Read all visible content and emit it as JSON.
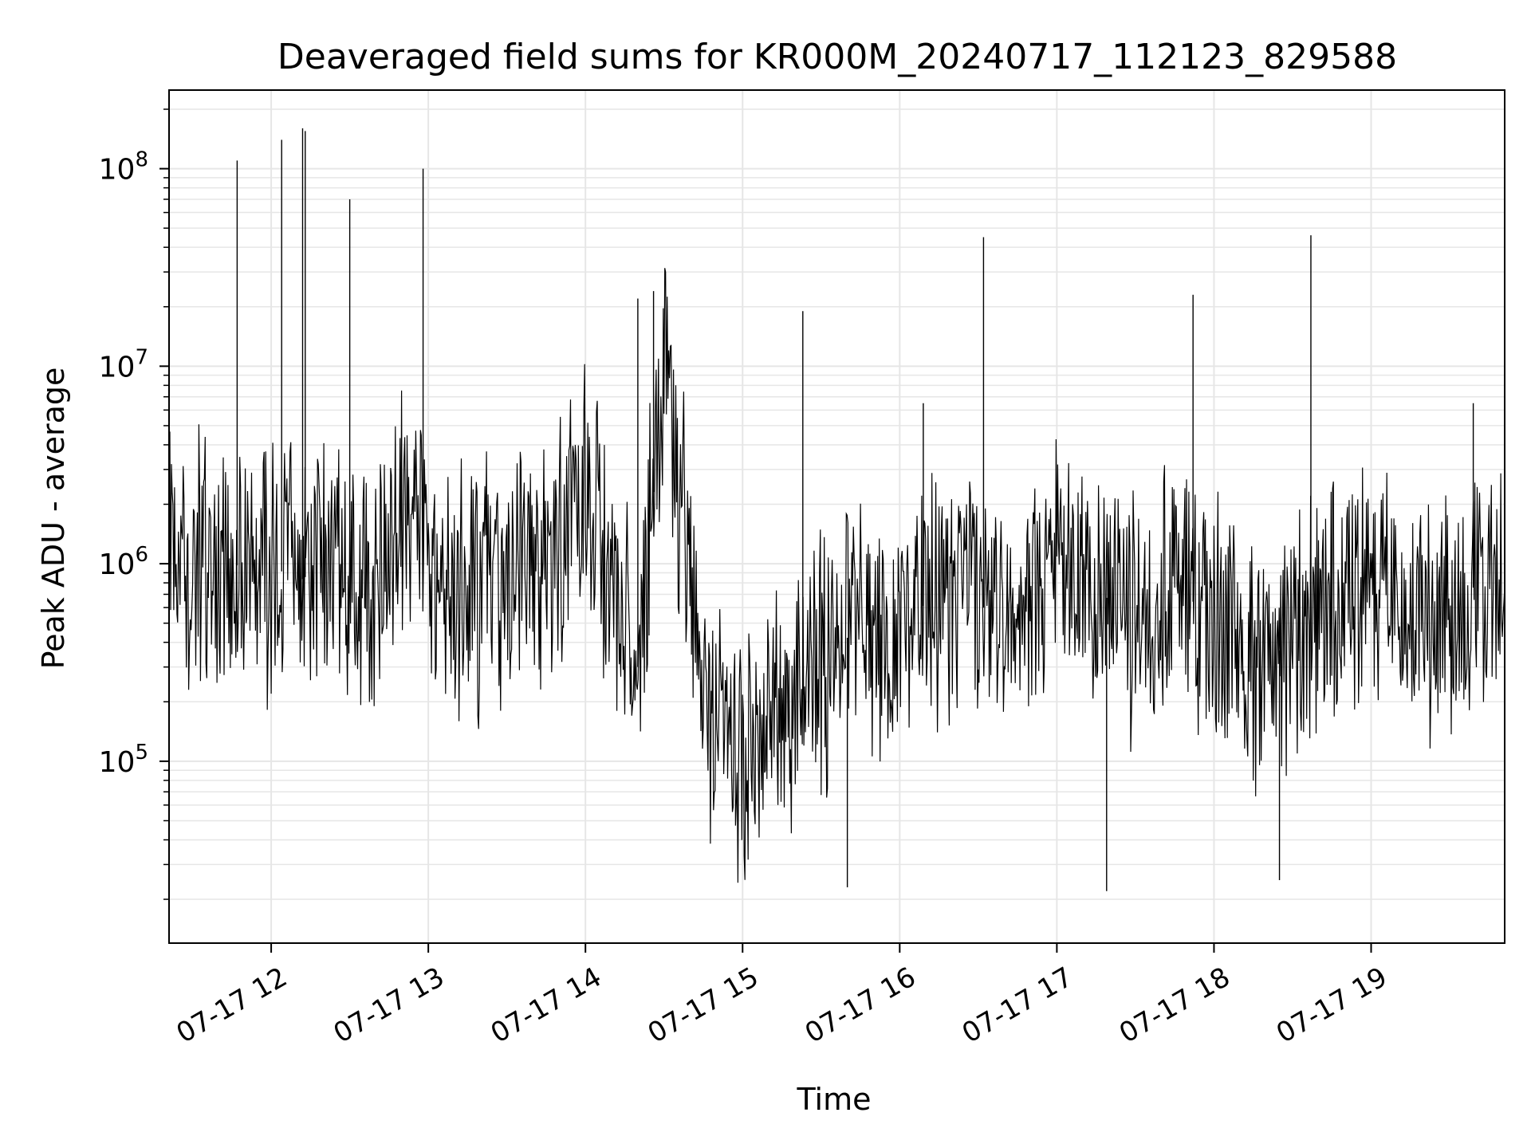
{
  "chart_data": {
    "type": "line",
    "title": "Deaveraged field sums for KR000M_20240717_112123_829588",
    "xlabel": "Time",
    "ylabel": "Peak ADU - average",
    "yscale": "log",
    "grid": true,
    "line_color": "#000000",
    "grid_color": "#e6e6e6",
    "xlim": [
      "2024-07-17 11:21",
      "2024-07-17 19:51"
    ],
    "ylim": [
      12000,
      250000000
    ],
    "xticks": [
      {
        "value": "2024-07-17 12:00",
        "label": "07-17 12"
      },
      {
        "value": "2024-07-17 13:00",
        "label": "07-17 13"
      },
      {
        "value": "2024-07-17 14:00",
        "label": "07-17 14"
      },
      {
        "value": "2024-07-17 15:00",
        "label": "07-17 15"
      },
      {
        "value": "2024-07-17 16:00",
        "label": "07-17 16"
      },
      {
        "value": "2024-07-17 17:00",
        "label": "07-17 17"
      },
      {
        "value": "2024-07-17 18:00",
        "label": "07-17 18"
      },
      {
        "value": "2024-07-17 19:00",
        "label": "07-17 19"
      }
    ],
    "yticks": [
      {
        "value": 100000,
        "base": "10",
        "exp": "5"
      },
      {
        "value": 1000000,
        "base": "10",
        "exp": "6"
      },
      {
        "value": 10000000,
        "base": "10",
        "exp": "7"
      },
      {
        "value": 100000000,
        "base": "10",
        "exp": "8"
      }
    ],
    "series": [
      {
        "x": [
          "2024-07-17 11:21",
          "2024-07-17 11:30",
          "2024-07-17 11:40",
          "2024-07-17 11:50",
          "2024-07-17 12:00",
          "2024-07-17 12:10",
          "2024-07-17 12:20",
          "2024-07-17 12:30",
          "2024-07-17 12:40",
          "2024-07-17 12:50",
          "2024-07-17 13:00",
          "2024-07-17 13:15",
          "2024-07-17 13:30",
          "2024-07-17 13:45",
          "2024-07-17 14:00",
          "2024-07-17 14:10",
          "2024-07-17 14:20",
          "2024-07-17 14:30",
          "2024-07-17 14:45",
          "2024-07-17 15:00",
          "2024-07-17 15:15",
          "2024-07-17 15:30",
          "2024-07-17 15:45",
          "2024-07-17 16:00",
          "2024-07-17 16:15",
          "2024-07-17 16:30",
          "2024-07-17 16:45",
          "2024-07-17 17:00",
          "2024-07-17 17:15",
          "2024-07-17 17:30",
          "2024-07-17 17:45",
          "2024-07-17 18:00",
          "2024-07-17 18:15",
          "2024-07-17 18:30",
          "2024-07-17 18:45",
          "2024-07-17 19:00",
          "2024-07-17 19:15",
          "2024-07-17 19:30",
          "2024-07-17 19:45",
          "2024-07-17 19:51"
        ],
        "y": [
          1500000,
          1000000,
          1200000,
          900000,
          1000000,
          800000,
          1000000,
          800000,
          700000,
          2000000,
          800000,
          700000,
          900000,
          1000000,
          3000000,
          600000,
          300000,
          9000000,
          200000,
          100000,
          150000,
          300000,
          500000,
          500000,
          700000,
          600000,
          600000,
          900000,
          700000,
          600000,
          800000,
          500000,
          300000,
          400000,
          700000,
          800000,
          500000,
          500000,
          1000000,
          1500000
        ],
        "spikes": [
          {
            "x": "2024-07-17 11:47",
            "y": 110000000
          },
          {
            "x": "2024-07-17 12:04",
            "y": 140000000
          },
          {
            "x": "2024-07-17 12:12",
            "y": 160000000
          },
          {
            "x": "2024-07-17 12:13",
            "y": 155000000
          },
          {
            "x": "2024-07-17 12:58",
            "y": 100000000
          },
          {
            "x": "2024-07-17 12:30",
            "y": 70000000
          },
          {
            "x": "2024-07-17 14:20",
            "y": 22000000
          },
          {
            "x": "2024-07-17 14:26",
            "y": 24000000
          },
          {
            "x": "2024-07-17 16:09",
            "y": 6500000
          },
          {
            "x": "2024-07-17 16:32",
            "y": 45000000
          },
          {
            "x": "2024-07-17 17:52",
            "y": 23000000
          },
          {
            "x": "2024-07-17 18:37",
            "y": 46000000
          },
          {
            "x": "2024-07-17 19:39",
            "y": 6500000
          }
        ],
        "dips": [
          {
            "x": "2024-07-17 15:23",
            "y": 19000000
          },
          {
            "x": "2024-07-17 17:19",
            "y": 22000
          },
          {
            "x": "2024-07-17 18:25",
            "y": 25000
          },
          {
            "x": "2024-07-17 15:40",
            "y": 23000
          }
        ]
      }
    ]
  }
}
